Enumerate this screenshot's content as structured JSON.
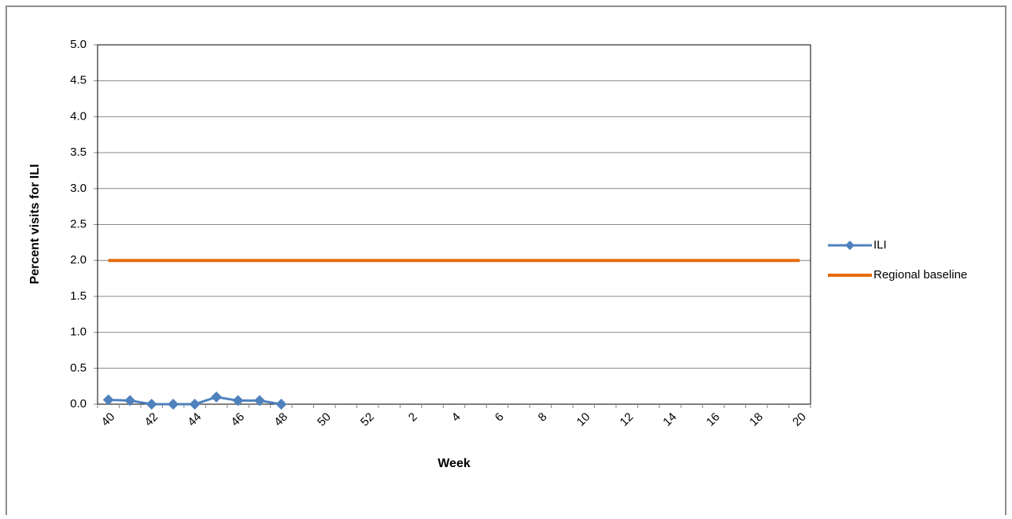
{
  "chart_data": {
    "type": "line",
    "x_label": "Week",
    "y_label": "Percent visits for ILI",
    "categories": [
      "40",
      null,
      "42",
      null,
      "44",
      null,
      "46",
      null,
      "48",
      null,
      "50",
      null,
      "52",
      null,
      "2",
      null,
      "4",
      null,
      "6",
      null,
      "8",
      null,
      "10",
      null,
      "12",
      null,
      "14",
      null,
      "16",
      null,
      "18",
      null,
      "20"
    ],
    "series": [
      {
        "name": "ILI",
        "color": "#4f81bd",
        "marker": "diamond",
        "values": [
          0.06,
          0.05,
          0.0,
          0.0,
          0.0,
          0.1,
          0.05,
          0.05,
          0.0,
          null,
          null,
          null,
          null,
          null,
          null,
          null,
          null,
          null,
          null,
          null,
          null,
          null,
          null,
          null,
          null,
          null,
          null,
          null,
          null,
          null,
          null,
          null,
          null
        ]
      },
      {
        "name": "Regional baseline",
        "color": "#e46c0a",
        "values": [
          2.0,
          2.0,
          2.0,
          2.0,
          2.0,
          2.0,
          2.0,
          2.0,
          2.0,
          2.0,
          2.0,
          2.0,
          2.0,
          2.0,
          2.0,
          2.0,
          2.0,
          2.0,
          2.0,
          2.0,
          2.0,
          2.0,
          2.0,
          2.0,
          2.0,
          2.0,
          2.0,
          2.0,
          2.0,
          2.0,
          2.0,
          2.0,
          2.0
        ]
      }
    ],
    "ylim": [
      0,
      5
    ],
    "yticks": [
      {
        "value": 0,
        "label": "0.0"
      },
      {
        "value": 0.5,
        "label": "0.5"
      },
      {
        "value": 1,
        "label": "1.0"
      },
      {
        "value": 1.5,
        "label": "1.5"
      },
      {
        "value": 2,
        "label": "2.0"
      },
      {
        "value": 2.5,
        "label": "2.5"
      },
      {
        "value": 3,
        "label": "3.0"
      },
      {
        "value": 3.5,
        "label": "3.5"
      },
      {
        "value": 4,
        "label": "4.0"
      },
      {
        "value": 4.5,
        "label": "4.5"
      },
      {
        "value": 5,
        "label": "5.0"
      }
    ],
    "grid": true,
    "legend": "right"
  }
}
